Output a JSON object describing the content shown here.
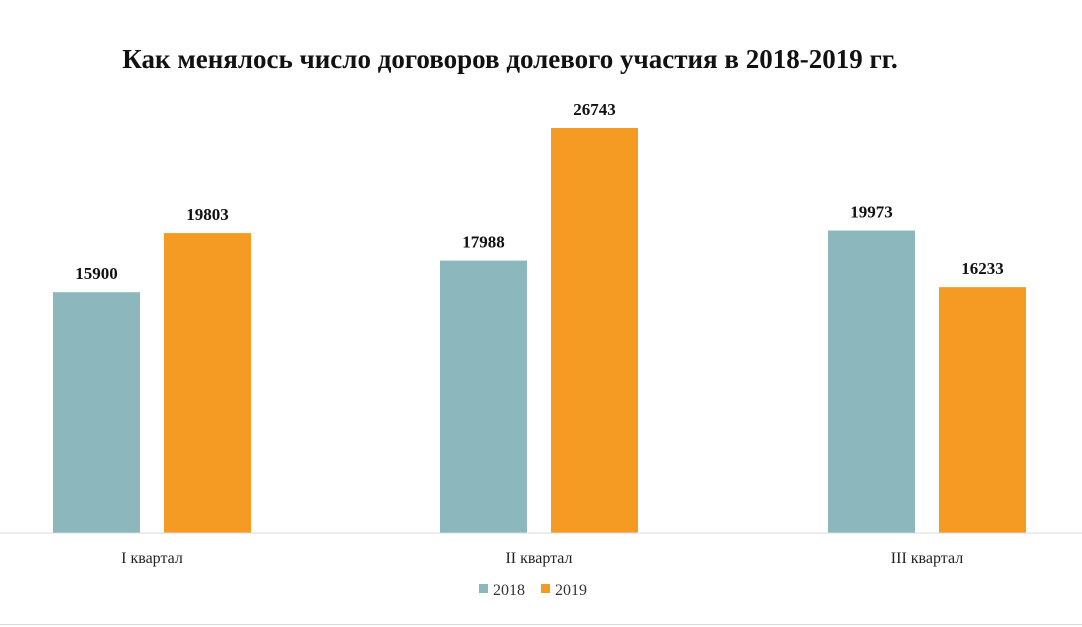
{
  "chart_data": {
    "type": "bar",
    "title": "Как менялось число договоров долевого участия в 2018-2019 гг.",
    "categories": [
      "I квартал",
      "II квартал",
      "III квартал"
    ],
    "series": [
      {
        "name": "2018",
        "values": [
          15900,
          17988,
          19973
        ],
        "color": "#8cb8bd"
      },
      {
        "name": "2019",
        "values": [
          19803,
          26743,
          16233
        ],
        "color": "#f59a23"
      }
    ],
    "ylim": [
      0,
      26743
    ],
    "grid": false,
    "legend_position": "bottom-center",
    "data_labels": true
  }
}
